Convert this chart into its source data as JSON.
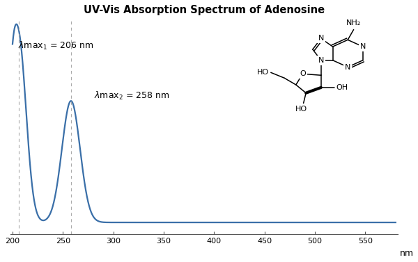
{
  "title": "UV-Vis Absorption Spectrum of Adenosine",
  "xlabel": "nm",
  "xlim": [
    198,
    582
  ],
  "ylim": [
    -0.04,
    1.1
  ],
  "xticks": [
    200,
    250,
    300,
    350,
    400,
    450,
    500,
    550
  ],
  "peak1_nm": 206,
  "peak2_nm": 258,
  "line_color": "#3a6fa8",
  "line_width": 1.6,
  "dashed_color": "#aaaaaa",
  "background_color": "#ffffff",
  "title_fontsize": 10.5,
  "label_fontsize": 9,
  "tick_fontsize": 8
}
